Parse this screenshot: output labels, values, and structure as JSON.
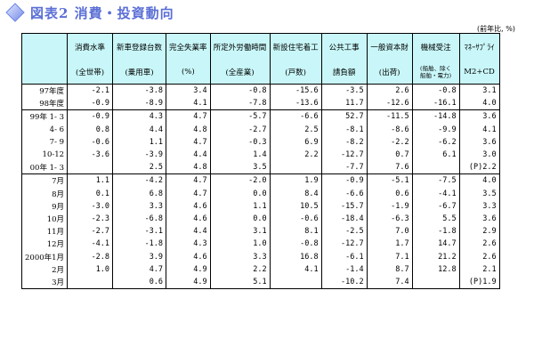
{
  "title": "図表2 消費・投資動向",
  "unit_note": "(前年比, %)",
  "columns": [
    {
      "top": "消費水準",
      "sub": "(全世帯)"
    },
    {
      "top": "新車登録台数",
      "sub": "(乗用車)"
    },
    {
      "top": "完全失業率",
      "sub": "(%)"
    },
    {
      "top": "所定外労働時間",
      "sub": "(全産業)"
    },
    {
      "top": "新設住宅着工",
      "sub": "(戸数)"
    },
    {
      "top": "公共工事",
      "sub": "請負額"
    },
    {
      "top": "一般資本財",
      "sub": "(出荷)"
    },
    {
      "top": "機械受注",
      "sub": "(船舶、除く\n船舶・電力)"
    },
    {
      "top": "ﾏﾈｰｻﾌﾟﾗｲ",
      "sub": "M2+CD"
    }
  ],
  "rows": [
    {
      "label": "97年度",
      "values": [
        "-2.1",
        "-3.8",
        "3.4",
        "-0.8",
        "-15.6",
        "-3.5",
        "2.6",
        "-0.8",
        "3.1"
      ]
    },
    {
      "label": "98年度",
      "values": [
        "-0.9",
        "-8.9",
        "4.1",
        "-7.8",
        "-13.6",
        "11.7",
        "-12.6",
        "-16.1",
        "4.0"
      ]
    },
    {
      "label": "99年 1- 3",
      "values": [
        "-0.9",
        "4.3",
        "4.7",
        "-5.7",
        "-6.6",
        "52.7",
        "-11.5",
        "-14.8",
        "3.6"
      ]
    },
    {
      "label": "4- 6",
      "values": [
        "0.8",
        "4.4",
        "4.8",
        "-2.7",
        "2.5",
        "-8.1",
        "-8.6",
        "-9.9",
        "4.1"
      ]
    },
    {
      "label": "7- 9",
      "values": [
        "-0.6",
        "1.1",
        "4.7",
        "-0.3",
        "6.9",
        "-8.2",
        "-2.2",
        "-6.2",
        "3.6"
      ]
    },
    {
      "label": "10-12",
      "values": [
        "-3.6",
        "-3.9",
        "4.4",
        "1.4",
        "2.2",
        "-12.7",
        "0.7",
        "6.1",
        "3.0"
      ]
    },
    {
      "label": "00年 1- 3",
      "values": [
        "",
        "2.5",
        "4.8",
        "3.5",
        "",
        "-7.7",
        "7.6",
        "",
        "(P)2.2"
      ]
    },
    {
      "label": "7月",
      "values": [
        "1.1",
        "-4.2",
        "4.7",
        "-2.0",
        "1.9",
        "-0.9",
        "-5.1",
        "-7.5",
        "4.0"
      ]
    },
    {
      "label": "8月",
      "values": [
        "0.1",
        "6.8",
        "4.7",
        "0.0",
        "8.4",
        "-6.6",
        "0.6",
        "-4.1",
        "3.5"
      ]
    },
    {
      "label": "9月",
      "values": [
        "-3.0",
        "3.3",
        "4.6",
        "1.1",
        "10.5",
        "-15.7",
        "-1.9",
        "-6.7",
        "3.3"
      ]
    },
    {
      "label": "10月",
      "values": [
        "-2.3",
        "-6.8",
        "4.6",
        "0.0",
        "-0.6",
        "-18.4",
        "-6.3",
        "5.5",
        "3.6"
      ]
    },
    {
      "label": "11月",
      "values": [
        "-2.7",
        "-3.1",
        "4.4",
        "3.1",
        "8.1",
        "-2.5",
        "7.0",
        "-1.8",
        "2.9"
      ]
    },
    {
      "label": "12月",
      "values": [
        "-4.1",
        "-1.8",
        "4.3",
        "1.0",
        "-0.8",
        "-12.7",
        "1.7",
        "14.7",
        "2.6"
      ]
    },
    {
      "label": "2000年1月",
      "values": [
        "-2.8",
        "3.9",
        "4.6",
        "3.3",
        "16.8",
        "-6.1",
        "7.1",
        "21.2",
        "2.6"
      ]
    },
    {
      "label": "2月",
      "values": [
        "1.0",
        "4.7",
        "4.9",
        "2.2",
        "4.1",
        "-1.4",
        "8.7",
        "12.8",
        "2.1"
      ]
    },
    {
      "label": "3月",
      "values": [
        "",
        "0.6",
        "4.9",
        "5.1",
        "",
        "-10.2",
        "7.4",
        "",
        "(P)1.9"
      ]
    }
  ],
  "icon": "diamond-bullet-icon",
  "colors": {
    "header_bg": "#c9f7f9",
    "title": "#5b6fd6"
  }
}
